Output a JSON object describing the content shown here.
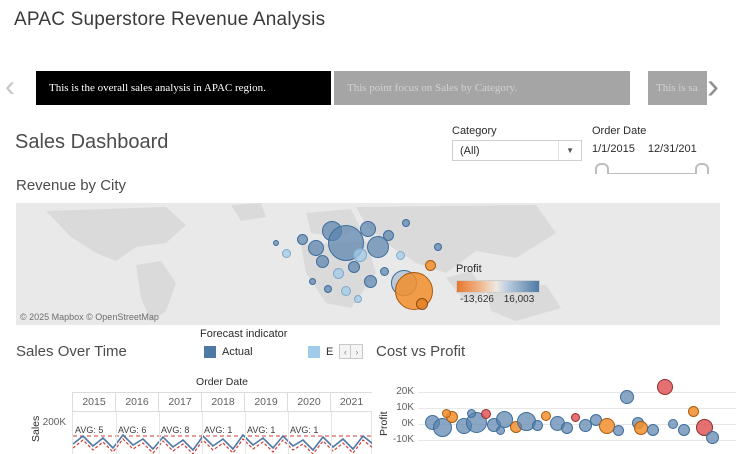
{
  "page_title": "APAC Superstore Revenue Analysis",
  "story_nav": {
    "prev_icon": "‹",
    "next_icon": "›",
    "captions": [
      {
        "text": "This is the overall sales analysis in APAC region.",
        "active": true
      },
      {
        "text": "This point focus on Sales by Category.",
        "active": false
      },
      {
        "text": "This is sa",
        "active": false
      }
    ]
  },
  "dashboard_title": "Sales Dashboard",
  "filters": {
    "category": {
      "label": "Category",
      "value": "(All)",
      "caret": "▼"
    },
    "order_date": {
      "label": "Order Date",
      "start": "1/1/2015",
      "end": "12/31/201"
    }
  },
  "map_section": {
    "title": "Revenue by City",
    "attribution": "© 2025 Mapbox © OpenStreetMap",
    "legend": {
      "title": "Profit",
      "min_label": "-13,626",
      "max_label": "16,003",
      "min_color": "#e8762d",
      "max_color": "#4e79a7"
    }
  },
  "forecast_legend": {
    "title": "Forecast indicator",
    "scroll_prev": "‹",
    "scroll_next": "›",
    "items": [
      {
        "label": "Actual",
        "color": "#4e79a7"
      },
      {
        "label": "E",
        "color": "#a0cbe8"
      }
    ]
  },
  "palette": {
    "b": {
      "fill": "rgba(91,131,174,0.72)",
      "stroke": "#3c6d9c"
    },
    "lb": {
      "fill": "rgba(160,203,232,0.75)",
      "stroke": "#7fa8c9"
    },
    "b2": {
      "fill": "rgba(110,150,185,0.35)",
      "stroke": "#3c6d9c"
    },
    "o": {
      "fill": "rgba(242,142,43,0.85)",
      "stroke": "#a85a0f"
    },
    "o2": {
      "fill": "rgba(230,126,34,0.80)",
      "stroke": "#8f4c0c"
    },
    "r": {
      "fill": "rgba(225,87,89,0.85)",
      "stroke": "#8f2d2e"
    }
  },
  "chart_data": [
    {
      "type": "scatter",
      "name": "revenue-by-city-map",
      "title": "Revenue by City",
      "legend": {
        "title": "Profit",
        "min": -13626,
        "max": 16003,
        "min_color": "#e8762d",
        "max_color": "#4e79a7"
      },
      "bubbles": [
        [
          300,
          45,
          16,
          "b"
        ],
        [
          316,
          28,
          20,
          "b"
        ],
        [
          330,
          40,
          36,
          "b"
        ],
        [
          352,
          26,
          16,
          "b"
        ],
        [
          344,
          52,
          14,
          "lb"
        ],
        [
          362,
          44,
          22,
          "b"
        ],
        [
          286,
          36,
          11,
          "b"
        ],
        [
          306,
          58,
          13,
          "b"
        ],
        [
          322,
          70,
          11,
          "lb"
        ],
        [
          338,
          64,
          12,
          "b"
        ],
        [
          372,
          32,
          11,
          "b"
        ],
        [
          384,
          52,
          9,
          "lb"
        ],
        [
          354,
          78,
          13,
          "b"
        ],
        [
          368,
          68,
          9,
          "b"
        ],
        [
          390,
          20,
          8,
          "b"
        ],
        [
          270,
          50,
          9,
          "lb"
        ],
        [
          330,
          88,
          10,
          "lb"
        ],
        [
          312,
          86,
          8,
          "b"
        ],
        [
          388,
          80,
          26,
          "b2"
        ],
        [
          398,
          88,
          38,
          "o"
        ],
        [
          414,
          62,
          11,
          "o"
        ],
        [
          422,
          44,
          8,
          "b"
        ],
        [
          296,
          78,
          7,
          "b"
        ],
        [
          260,
          40,
          6,
          "b"
        ],
        [
          342,
          96,
          8,
          "lb"
        ],
        [
          406,
          101,
          12,
          "o2"
        ]
      ]
    },
    {
      "type": "line",
      "name": "sales-over-time",
      "title": "Sales Over Time",
      "xlabel": "Order Date",
      "ylabel": "Sales",
      "x_ticks": [
        "2015",
        "2016",
        "2017",
        "2018",
        "2019",
        "2020",
        "2021"
      ],
      "y_ticks": [
        "200K"
      ],
      "ref_line_labels": [
        "AVG: 5",
        "AVG: 6",
        "AVG: 8",
        "AVG: 1",
        "AVG: 1",
        "AVG: 1"
      ],
      "reference_color": "#cf3e36",
      "series": [
        {
          "name": "Actual",
          "color": "#4e79a7"
        },
        {
          "name": "Estimate",
          "color": "#a0cbe8"
        }
      ],
      "polylines": {
        "actual": [
          [
            0,
            32
          ],
          [
            10,
            24
          ],
          [
            20,
            34
          ],
          [
            30,
            26
          ],
          [
            40,
            36
          ],
          [
            50,
            23
          ],
          [
            60,
            33
          ],
          [
            70,
            27
          ],
          [
            80,
            37
          ],
          [
            90,
            25
          ],
          [
            100,
            35
          ],
          [
            110,
            28
          ],
          [
            120,
            38
          ],
          [
            130,
            24
          ],
          [
            140,
            34
          ],
          [
            150,
            27
          ],
          [
            160,
            37
          ],
          [
            170,
            23
          ],
          [
            180,
            33
          ],
          [
            190,
            26
          ],
          [
            200,
            36
          ],
          [
            210,
            24
          ],
          [
            220,
            34
          ],
          [
            230,
            28
          ],
          [
            240,
            38
          ],
          [
            250,
            25
          ],
          [
            260,
            35
          ],
          [
            270,
            27
          ],
          [
            280,
            37
          ],
          [
            290,
            24
          ],
          [
            300,
            32
          ]
        ],
        "reference": [
          [
            0,
            36
          ],
          [
            10,
            28
          ],
          [
            20,
            38
          ],
          [
            30,
            30
          ],
          [
            40,
            40
          ],
          [
            50,
            27
          ],
          [
            60,
            37
          ],
          [
            70,
            31
          ],
          [
            80,
            41
          ],
          [
            90,
            29
          ],
          [
            100,
            39
          ],
          [
            110,
            32
          ],
          [
            120,
            42
          ],
          [
            130,
            28
          ],
          [
            140,
            38
          ],
          [
            150,
            31
          ],
          [
            160,
            41
          ],
          [
            170,
            27
          ],
          [
            180,
            37
          ],
          [
            190,
            30
          ],
          [
            200,
            40
          ],
          [
            210,
            28
          ],
          [
            220,
            38
          ],
          [
            230,
            32
          ],
          [
            240,
            42
          ],
          [
            250,
            29
          ],
          [
            260,
            39
          ],
          [
            270,
            31
          ],
          [
            280,
            41
          ],
          [
            290,
            28
          ],
          [
            300,
            36
          ]
        ]
      }
    },
    {
      "type": "scatter",
      "name": "cost-vs-profit",
      "title": "Cost vs Profit",
      "ylabel": "Profit",
      "y_ticks": [
        "20K",
        "10K",
        "0K",
        "-10K"
      ],
      "points": [
        [
          56,
          52,
          15,
          "b"
        ],
        [
          66,
          57,
          19,
          "b"
        ],
        [
          76,
          47,
          12,
          "o"
        ],
        [
          88,
          56,
          16,
          "b"
        ],
        [
          100,
          52,
          21,
          "b"
        ],
        [
          110,
          44,
          10,
          "r"
        ],
        [
          118,
          55,
          14,
          "b"
        ],
        [
          128,
          49,
          17,
          "b"
        ],
        [
          140,
          57,
          12,
          "o"
        ],
        [
          150,
          51,
          19,
          "b"
        ],
        [
          161,
          55,
          11,
          "b"
        ],
        [
          170,
          46,
          10,
          "o"
        ],
        [
          181,
          53,
          15,
          "b"
        ],
        [
          191,
          58,
          12,
          "b"
        ],
        [
          199,
          47,
          9,
          "r"
        ],
        [
          209,
          55,
          13,
          "b"
        ],
        [
          220,
          50,
          12,
          "b"
        ],
        [
          231,
          56,
          16,
          "o"
        ],
        [
          242,
          60,
          11,
          "b"
        ],
        [
          251,
          27,
          14,
          "b"
        ],
        [
          262,
          53,
          12,
          "b"
        ],
        [
          265,
          58,
          14,
          "o"
        ],
        [
          277,
          60,
          12,
          "b"
        ],
        [
          289,
          17,
          16,
          "r"
        ],
        [
          297,
          54,
          10,
          "b"
        ],
        [
          308,
          60,
          12,
          "b"
        ],
        [
          317,
          41,
          11,
          "o"
        ],
        [
          328,
          57,
          17,
          "r"
        ],
        [
          336,
          67,
          13,
          "b"
        ],
        [
          70,
          43,
          9,
          "o"
        ],
        [
          95,
          43,
          9,
          "b"
        ],
        [
          124,
          60,
          9,
          "b"
        ]
      ]
    }
  ]
}
